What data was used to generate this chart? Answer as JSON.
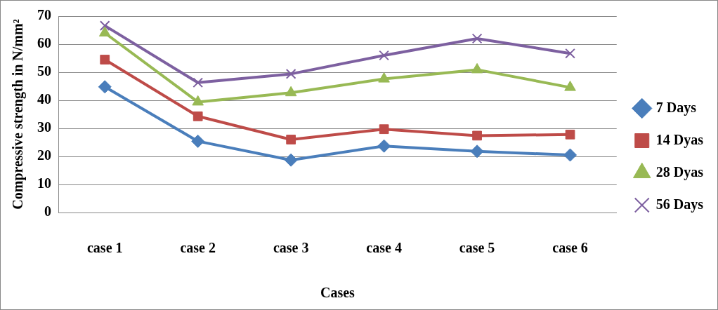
{
  "chart_data": {
    "type": "line",
    "ylabel": "Compressive strength in N/mm²",
    "xlabel": "Cases",
    "categories": [
      "case 1",
      "case 2",
      "case 3",
      "case 4",
      "case 5",
      "case 6"
    ],
    "series": [
      {
        "name": "7 Days",
        "color": "#4a7ebb",
        "marker": "diamond",
        "values": [
          44.8,
          25.4,
          18.7,
          23.7,
          21.8,
          20.5
        ]
      },
      {
        "name": "14 Dyas",
        "color": "#be4b48",
        "marker": "square",
        "values": [
          54.5,
          34.3,
          26,
          29.7,
          27.4,
          27.8
        ]
      },
      {
        "name": "28 Dyas",
        "color": "#98b954",
        "marker": "triangle",
        "values": [
          64,
          39.4,
          42.7,
          47.6,
          50.9,
          44.6
        ]
      },
      {
        "name": "56 Days",
        "color": "#7d60a0",
        "marker": "cross",
        "values": [
          66.6,
          46.3,
          49.4,
          56,
          62,
          56.7
        ]
      }
    ],
    "ylim": [
      0,
      70
    ],
    "yticks": [
      0,
      10,
      20,
      30,
      40,
      50,
      60,
      70
    ],
    "grid": "y",
    "legend": "right",
    "line_style": "solid"
  }
}
